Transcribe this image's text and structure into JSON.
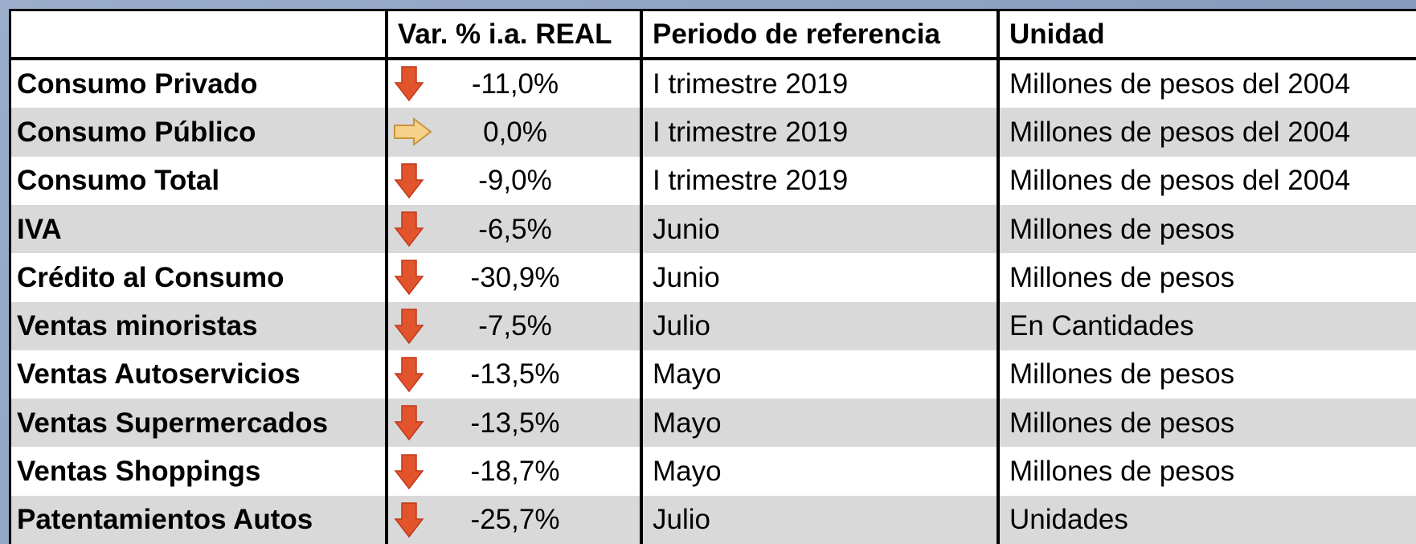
{
  "table": {
    "header": [
      "Var. % i.a. REAL",
      "Periodo de referencia",
      "Unidad"
    ],
    "rows": [
      [
        "Consumo Privado",
        "-11,0%",
        "I trimestre 2019",
        "Millones de pesos del 2004"
      ],
      [
        "Consumo Público",
        "0,0%",
        "I trimestre 2019",
        "Millones de pesos del 2004"
      ],
      [
        "Consumo Total",
        "-9,0%",
        "I trimestre 2019",
        "Millones de pesos del 2004"
      ],
      [
        "IVA",
        "-6,5%",
        "Junio",
        "Millones de pesos"
      ],
      [
        "Crédito al Consumo",
        "-30,9%",
        "Junio",
        "Millones de pesos"
      ],
      [
        "Ventas minoristas",
        "-7,5%",
        "Julio",
        "En Cantidades"
      ],
      [
        "Ventas Autoservicios",
        "-13,5%",
        "Mayo",
        "Millones de pesos"
      ],
      [
        "Ventas Supermercados",
        "-13,5%",
        "Mayo",
        "Millones de pesos"
      ],
      [
        "Ventas Shoppings",
        "-18,7%",
        "Mayo",
        "Millones de pesos"
      ],
      [
        "Patentamientos Autos",
        "-25,7%",
        "Julio",
        "Unidades"
      ]
    ]
  }
}
